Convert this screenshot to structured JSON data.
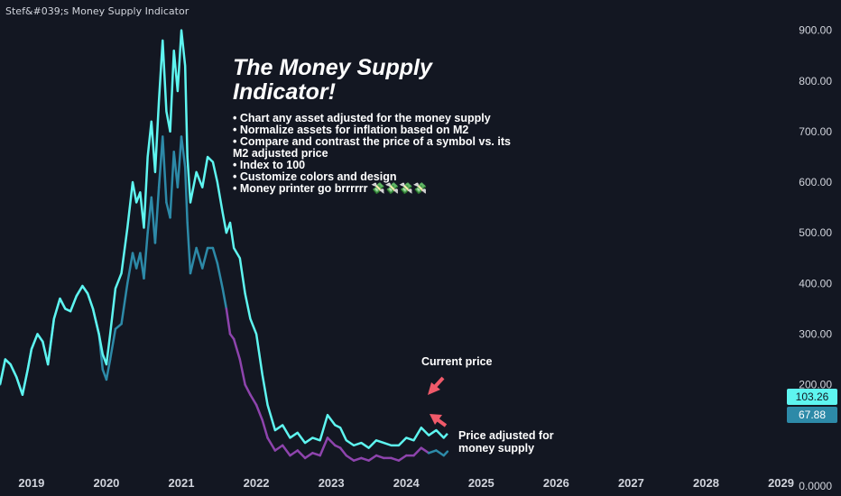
{
  "indicator_title": "Stef&#039;s Money Supply Indicator",
  "headline": "The Money Supply Indicator!",
  "bullets": [
    "• Chart any asset adjusted for the money supply",
    "• Normalize assets for inflation based on M2",
    "• Compare and contrast the price of a symbol vs. its",
    "M2 adjusted price",
    "• Index to 100",
    "• Customize colors and design",
    "• Money printer go brrrrrr 💸💸💸💸"
  ],
  "annotations": {
    "current_price": "Current price",
    "adjusted_line1": "Price adjusted for",
    "adjusted_line2": "money supply"
  },
  "badges": {
    "current": "103.26",
    "adjusted": "67.88"
  },
  "colors": {
    "background": "#131722",
    "current_line": "#5ef5f0",
    "adjusted_line_early": "#2d8aa8",
    "adjusted_line_late": "#8e44ad",
    "arrow": "#f05a6a"
  },
  "chart_data": {
    "type": "line",
    "title": "",
    "xlabel": "",
    "ylabel": "",
    "x_ticks": [
      "2019",
      "2020",
      "2021",
      "2022",
      "2023",
      "2024",
      "2025",
      "2026",
      "2027",
      "2028",
      "2029"
    ],
    "y_ticks": [
      "900.00",
      "800.00",
      "700.00",
      "600.00",
      "500.00",
      "400.00",
      "300.00",
      "200.00",
      "0.0000"
    ],
    "y_tick_values": [
      900,
      800,
      700,
      600,
      500,
      400,
      300,
      200,
      0
    ],
    "ylim": [
      -20,
      960
    ],
    "xlim": [
      2018.58,
      2029.8
    ],
    "grid": false,
    "series": [
      {
        "x": [
          2018.58,
          2018.65,
          2018.72,
          2018.8,
          2018.88,
          2018.95,
          2019.0,
          2019.08,
          2019.15,
          2019.22,
          2019.3,
          2019.38,
          2019.45,
          2019.52,
          2019.6,
          2019.68,
          2019.75,
          2019.82,
          2019.9,
          2019.95,
          2020.0,
          2020.05,
          2020.12,
          2020.2,
          2020.28,
          2020.35,
          2020.4,
          2020.45,
          2020.5,
          2020.55,
          2020.6,
          2020.65,
          2020.7,
          2020.75,
          2020.8,
          2020.85,
          2020.9,
          2020.95,
          2021.0,
          2021.05,
          2021.08,
          2021.12,
          2021.2,
          2021.28,
          2021.35,
          2021.42,
          2021.48,
          2021.55,
          2021.6,
          2021.65,
          2021.7,
          2021.78,
          2021.85,
          2021.92,
          2022.0,
          2022.08,
          2022.15,
          2022.25,
          2022.35,
          2022.45,
          2022.55,
          2022.65,
          2022.75,
          2022.85,
          2022.95,
          2023.05,
          2023.12,
          2023.2,
          2023.3,
          2023.4,
          2023.5,
          2023.6,
          2023.7,
          2023.8,
          2023.9,
          2024.0,
          2024.1,
          2024.2,
          2024.3,
          2024.4,
          2024.5,
          2024.55
        ],
        "values": [
          200,
          250,
          240,
          215,
          180,
          230,
          270,
          300,
          285,
          240,
          330,
          370,
          350,
          345,
          375,
          395,
          380,
          350,
          300,
          260,
          240,
          300,
          390,
          420,
          510,
          600,
          560,
          580,
          510,
          650,
          720,
          620,
          760,
          880,
          740,
          700,
          860,
          780,
          900,
          830,
          650,
          560,
          620,
          590,
          650,
          640,
          600,
          540,
          500,
          520,
          470,
          450,
          380,
          330,
          300,
          220,
          160,
          110,
          120,
          95,
          105,
          85,
          95,
          90,
          140,
          120,
          115,
          90,
          80,
          85,
          75,
          90,
          85,
          80,
          80,
          95,
          90,
          115,
          100,
          110,
          95,
          103.26
        ]
      },
      {
        "x": [
          2018.58,
          2018.65,
          2018.72,
          2018.8,
          2018.88,
          2018.95,
          2019.0,
          2019.08,
          2019.15,
          2019.22,
          2019.3,
          2019.38,
          2019.45,
          2019.52,
          2019.6,
          2019.68,
          2019.75,
          2019.82,
          2019.9,
          2019.95,
          2020.0,
          2020.05,
          2020.12,
          2020.2,
          2020.28,
          2020.35,
          2020.4,
          2020.45,
          2020.5,
          2020.55,
          2020.6,
          2020.65,
          2020.7,
          2020.75,
          2020.8,
          2020.85,
          2020.9,
          2020.95,
          2021.0,
          2021.05,
          2021.08,
          2021.12,
          2021.2,
          2021.28,
          2021.35,
          2021.42,
          2021.48,
          2021.55,
          2021.6,
          2021.65,
          2021.7,
          2021.78,
          2021.85,
          2021.92,
          2022.0,
          2022.08,
          2022.15,
          2022.25,
          2022.35,
          2022.45,
          2022.55,
          2022.65,
          2022.75,
          2022.85,
          2022.95,
          2023.05,
          2023.12,
          2023.2,
          2023.3,
          2023.4,
          2023.5,
          2023.6,
          2023.7,
          2023.8,
          2023.9,
          2024.0,
          2024.1,
          2024.2,
          2024.3,
          2024.4,
          2024.5,
          2024.55
        ],
        "values": [
          200,
          250,
          240,
          215,
          180,
          230,
          270,
          300,
          285,
          240,
          330,
          370,
          350,
          345,
          375,
          395,
          380,
          350,
          300,
          230,
          210,
          250,
          310,
          320,
          400,
          460,
          430,
          460,
          410,
          500,
          570,
          480,
          590,
          690,
          560,
          530,
          660,
          590,
          690,
          630,
          520,
          420,
          470,
          430,
          470,
          470,
          440,
          390,
          350,
          300,
          290,
          250,
          200,
          180,
          160,
          130,
          95,
          70,
          80,
          60,
          70,
          55,
          65,
          60,
          95,
          80,
          75,
          60,
          50,
          55,
          50,
          60,
          55,
          55,
          50,
          60,
          60,
          75,
          65,
          70,
          60,
          67.88
        ]
      }
    ]
  }
}
